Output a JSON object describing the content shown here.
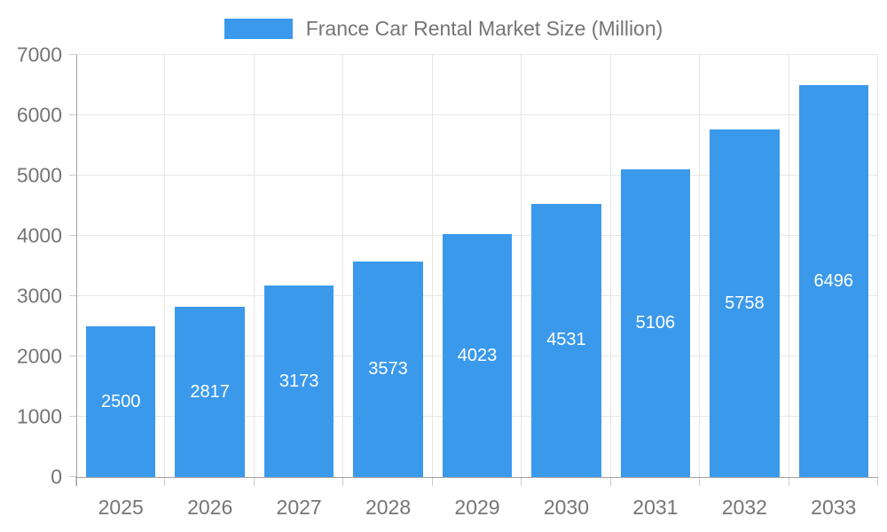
{
  "legend": {
    "label": "France Car Rental Market Size (Million)"
  },
  "chart_data": {
    "type": "bar",
    "title": "France Car Rental Market Size (Million)",
    "categories": [
      "2025",
      "2026",
      "2027",
      "2028",
      "2029",
      "2030",
      "2031",
      "2032",
      "2033"
    ],
    "values": [
      2500,
      2817,
      3173,
      3573,
      4023,
      4531,
      5106,
      5758,
      6496
    ],
    "bar_value_labels": [
      "2500",
      "2817",
      "3173",
      "3573",
      "4023",
      "4531",
      "5106",
      "5758",
      "6496"
    ],
    "xlabel": "",
    "ylabel": "",
    "ylim": [
      0,
      7000
    ],
    "ytick_interval": 1000,
    "ytick_labels": [
      "0",
      "1000",
      "2000",
      "3000",
      "4000",
      "5000",
      "6000",
      "7000"
    ],
    "grid": true,
    "legend_position": "top",
    "bar_width_fraction": 0.78,
    "colors": {
      "bar": "#3b99ec",
      "bar_value_text": "#ffffff",
      "axis_text": "#757575",
      "grid_line": "#e6e6e6",
      "axis_line": "#a3a3a3",
      "tick_mark": "#cccccc",
      "background": "#ffffff"
    }
  }
}
